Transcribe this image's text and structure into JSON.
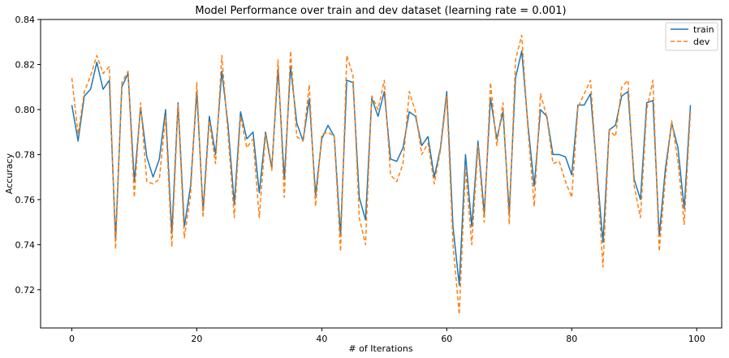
{
  "chart_data": {
    "type": "line",
    "title": "Model Performance over train and dev dataset (learning rate = 0.001)",
    "xlabel": "# of Iterations",
    "ylabel": "Accuracy",
    "xlim": [
      -5,
      104
    ],
    "ylim": [
      0.703,
      0.84
    ],
    "xticks": [
      0,
      20,
      40,
      60,
      80,
      100
    ],
    "yticks": [
      0.72,
      0.74,
      0.76,
      0.78,
      0.8,
      0.82,
      0.84
    ],
    "ytick_labels": [
      "0.72",
      "0.74",
      "0.76",
      "0.78",
      "0.80",
      "0.82",
      "0.84"
    ],
    "legend_position": "top-right",
    "grid": false,
    "series": [
      {
        "name": "train",
        "color": "#1f77b4",
        "dash": "solid",
        "values": [
          0.802,
          0.786,
          0.806,
          0.809,
          0.821,
          0.809,
          0.813,
          0.742,
          0.81,
          0.816,
          0.768,
          0.801,
          0.779,
          0.77,
          0.778,
          0.8,
          0.745,
          0.803,
          0.748,
          0.766,
          0.808,
          0.755,
          0.797,
          0.78,
          0.817,
          0.793,
          0.758,
          0.799,
          0.787,
          0.79,
          0.763,
          0.79,
          0.774,
          0.818,
          0.769,
          0.819,
          0.794,
          0.786,
          0.805,
          0.762,
          0.787,
          0.793,
          0.788,
          0.744,
          0.813,
          0.812,
          0.761,
          0.751,
          0.805,
          0.797,
          0.808,
          0.778,
          0.777,
          0.783,
          0.799,
          0.797,
          0.784,
          0.788,
          0.77,
          0.783,
          0.808,
          0.748,
          0.722,
          0.78,
          0.748,
          0.786,
          0.754,
          0.805,
          0.787,
          0.799,
          0.754,
          0.814,
          0.826,
          0.793,
          0.766,
          0.8,
          0.797,
          0.78,
          0.78,
          0.779,
          0.771,
          0.802,
          0.802,
          0.807,
          0.774,
          0.741,
          0.791,
          0.793,
          0.806,
          0.808,
          0.769,
          0.76,
          0.803,
          0.804,
          0.744,
          0.774,
          0.794,
          0.783,
          0.756,
          0.802
        ]
      },
      {
        "name": "dev",
        "color": "#ff7f0e",
        "dash": "dashed",
        "values": [
          0.814,
          0.789,
          0.808,
          0.815,
          0.824,
          0.816,
          0.819,
          0.738,
          0.812,
          0.817,
          0.761,
          0.803,
          0.768,
          0.767,
          0.769,
          0.797,
          0.739,
          0.802,
          0.743,
          0.762,
          0.812,
          0.752,
          0.795,
          0.776,
          0.824,
          0.789,
          0.752,
          0.797,
          0.783,
          0.787,
          0.752,
          0.789,
          0.773,
          0.822,
          0.761,
          0.826,
          0.788,
          0.786,
          0.811,
          0.757,
          0.789,
          0.79,
          0.788,
          0.737,
          0.824,
          0.815,
          0.752,
          0.74,
          0.806,
          0.8,
          0.813,
          0.771,
          0.768,
          0.776,
          0.808,
          0.799,
          0.78,
          0.785,
          0.767,
          0.782,
          0.806,
          0.74,
          0.709,
          0.774,
          0.74,
          0.784,
          0.75,
          0.812,
          0.784,
          0.803,
          0.749,
          0.822,
          0.833,
          0.791,
          0.757,
          0.807,
          0.797,
          0.776,
          0.777,
          0.768,
          0.761,
          0.801,
          0.807,
          0.813,
          0.773,
          0.73,
          0.791,
          0.788,
          0.81,
          0.813,
          0.766,
          0.752,
          0.8,
          0.813,
          0.737,
          0.77,
          0.795,
          0.777,
          0.749,
          0.799
        ]
      }
    ]
  }
}
